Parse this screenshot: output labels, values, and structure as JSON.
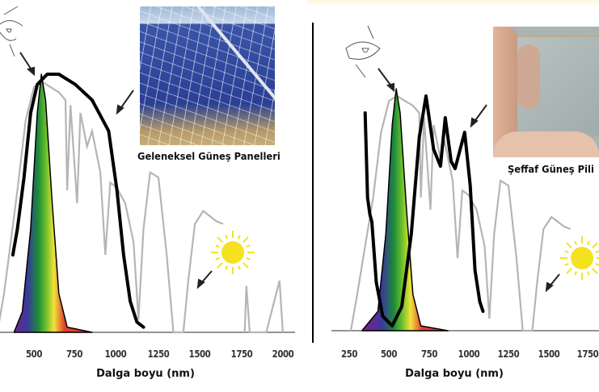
{
  "panels": [
    {
      "caption": "Geleneksel Güneş Panelleri",
      "xlabel": "Dalga boyu (nm)",
      "ticks": [
        "500",
        "750",
        "1000",
        "1250",
        "1500",
        "1750",
        "2000"
      ]
    },
    {
      "caption": "Şeffaf Güneş Pili",
      "xlabel": "Dalga boyu (nm)",
      "ticks": [
        "250",
        "500",
        "750",
        "1000",
        "1250",
        "1500",
        "1750"
      ]
    }
  ],
  "chart_data": [
    {
      "type": "line",
      "title": "Geleneksel Güneş Panelleri",
      "xlabel": "Dalga boyu (nm)",
      "xlim": [
        250,
        2050
      ],
      "ylim": [
        0,
        1
      ],
      "series": [
        {
          "name": "solar-spectrum",
          "color": "#b5b5b5",
          "points": [
            [
              280,
              0
            ],
            [
              320,
              0.15
            ],
            [
              360,
              0.35
            ],
            [
              400,
              0.55
            ],
            [
              450,
              0.82
            ],
            [
              500,
              0.95
            ],
            [
              550,
              0.97
            ],
            [
              600,
              0.95
            ],
            [
              650,
              0.93
            ],
            [
              690,
              0.9
            ],
            [
              700,
              0.55
            ],
            [
              720,
              0.88
            ],
            [
              760,
              0.5
            ],
            [
              780,
              0.85
            ],
            [
              820,
              0.72
            ],
            [
              850,
              0.78
            ],
            [
              900,
              0.62
            ],
            [
              930,
              0.3
            ],
            [
              960,
              0.58
            ],
            [
              1000,
              0.56
            ],
            [
              1050,
              0.5
            ],
            [
              1100,
              0.35
            ],
            [
              1130,
              0.05
            ],
            [
              1160,
              0.4
            ],
            [
              1200,
              0.62
            ],
            [
              1250,
              0.6
            ],
            [
              1300,
              0.3
            ],
            [
              1340,
              0.0
            ],
            [
              1400,
              0.0
            ],
            [
              1430,
              0.2
            ],
            [
              1470,
              0.42
            ],
            [
              1520,
              0.47
            ],
            [
              1600,
              0.43
            ],
            [
              1640,
              0.42
            ]
          ]
        },
        {
          "name": "solar-spectrum-far",
          "color": "#b5b5b5",
          "points": [
            [
              1770,
              0.0
            ],
            [
              1780,
              0.18
            ],
            [
              1800,
              0.0
            ],
            [
              1900,
              0.0
            ],
            [
              1980,
              0.2
            ],
            [
              2000,
              0.0
            ]
          ]
        },
        {
          "name": "eye-response",
          "color": "#000000",
          "points": [
            [
              380,
              0
            ],
            [
              430,
              0.08
            ],
            [
              480,
              0.4
            ],
            [
              520,
              0.85
            ],
            [
              545,
              1.0
            ],
            [
              570,
              0.9
            ],
            [
              610,
              0.5
            ],
            [
              650,
              0.15
            ],
            [
              700,
              0.02
            ],
            [
              850,
              0
            ]
          ]
        },
        {
          "name": "solar-cell-response",
          "color": "#000000",
          "points": [
            [
              373,
              0.3
            ],
            [
              400,
              0.4
            ],
            [
              440,
              0.6
            ],
            [
              480,
              0.85
            ],
            [
              520,
              0.96
            ],
            [
              580,
              1.0
            ],
            [
              650,
              1.0
            ],
            [
              750,
              0.96
            ],
            [
              850,
              0.9
            ],
            [
              950,
              0.78
            ],
            [
              1000,
              0.55
            ],
            [
              1040,
              0.3
            ],
            [
              1080,
              0.12
            ],
            [
              1120,
              0.04
            ],
            [
              1160,
              0.02
            ]
          ]
        }
      ]
    },
    {
      "type": "line",
      "title": "Şeffaf Güneş Pili",
      "xlabel": "Dalga boyu (nm)",
      "xlim": [
        250,
        1800
      ],
      "ylim": [
        0,
        1
      ],
      "series": [
        {
          "name": "solar-spectrum",
          "color": "#b5b5b5",
          "points": [
            [
              260,
              0
            ],
            [
              300,
              0.15
            ],
            [
              350,
              0.35
            ],
            [
              400,
              0.55
            ],
            [
              450,
              0.82
            ],
            [
              500,
              0.95
            ],
            [
              550,
              0.97
            ],
            [
              600,
              0.95
            ],
            [
              650,
              0.93
            ],
            [
              690,
              0.9
            ],
            [
              700,
              0.55
            ],
            [
              720,
              0.88
            ],
            [
              760,
              0.5
            ],
            [
              780,
              0.85
            ],
            [
              820,
              0.72
            ],
            [
              850,
              0.78
            ],
            [
              900,
              0.62
            ],
            [
              930,
              0.3
            ],
            [
              960,
              0.58
            ],
            [
              1000,
              0.56
            ],
            [
              1050,
              0.5
            ],
            [
              1100,
              0.35
            ],
            [
              1130,
              0.05
            ],
            [
              1160,
              0.4
            ],
            [
              1200,
              0.62
            ],
            [
              1250,
              0.6
            ],
            [
              1300,
              0.3
            ],
            [
              1340,
              0.0
            ],
            [
              1400,
              0.0
            ],
            [
              1430,
              0.2
            ],
            [
              1470,
              0.42
            ],
            [
              1520,
              0.47
            ],
            [
              1600,
              0.43
            ],
            [
              1640,
              0.42
            ]
          ]
        },
        {
          "name": "eye-response",
          "color": "#000000",
          "points": [
            [
              330,
              0
            ],
            [
              430,
              0.08
            ],
            [
              480,
              0.4
            ],
            [
              520,
              0.85
            ],
            [
              545,
              1.0
            ],
            [
              570,
              0.9
            ],
            [
              610,
              0.5
            ],
            [
              650,
              0.15
            ],
            [
              700,
              0.02
            ],
            [
              870,
              0
            ]
          ]
        },
        {
          "name": "solar-cell-response",
          "color": "#000000",
          "points": [
            [
              350,
              0.9
            ],
            [
              365,
              0.55
            ],
            [
              380,
              0.48
            ],
            [
              392,
              0.45
            ],
            [
              420,
              0.2
            ],
            [
              460,
              0.06
            ],
            [
              520,
              0.02
            ],
            [
              580,
              0.1
            ],
            [
              640,
              0.4
            ],
            [
              690,
              0.8
            ],
            [
              732,
              0.97
            ],
            [
              780,
              0.75
            ],
            [
              823,
              0.68
            ],
            [
              853,
              0.88
            ],
            [
              890,
              0.7
            ],
            [
              915,
              0.67
            ],
            [
              975,
              0.82
            ],
            [
              1010,
              0.6
            ],
            [
              1040,
              0.25
            ],
            [
              1070,
              0.12
            ],
            [
              1090,
              0.08
            ]
          ]
        }
      ]
    }
  ]
}
